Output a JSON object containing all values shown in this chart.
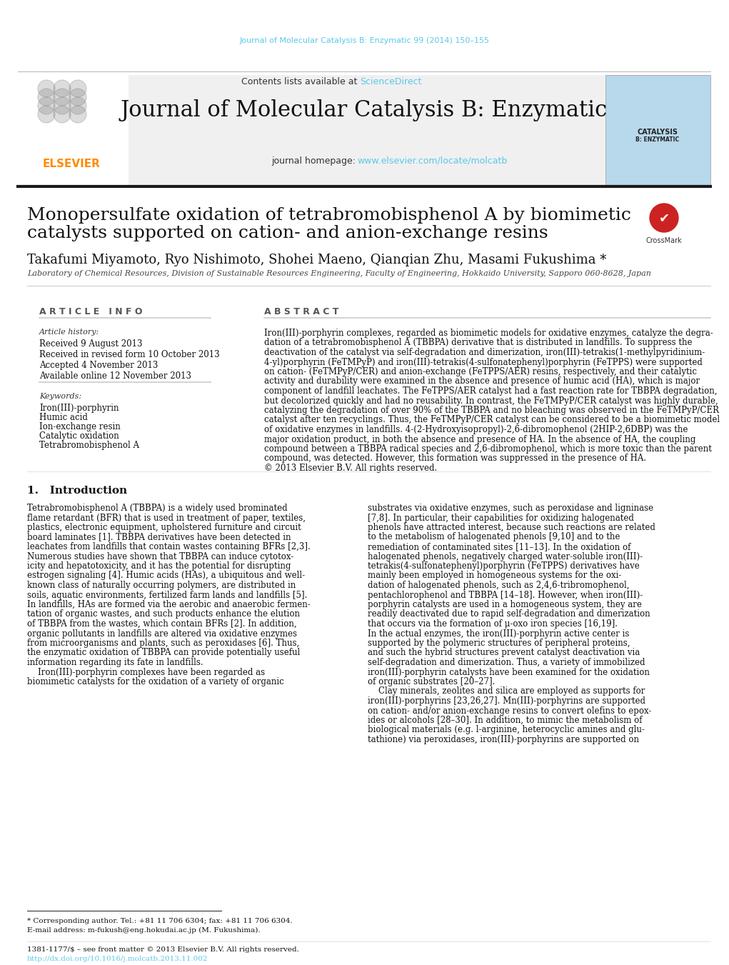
{
  "bg_color": "#ffffff",
  "top_journal_text": "Journal of Molecular Catalysis B: Enzymatic 99 (2014) 150–155",
  "top_journal_color": "#5bc8e8",
  "header_bg": "#f0f0f0",
  "contents_text": "Contents lists available at ",
  "sciencedirect_text": "ScienceDirect",
  "sciencedirect_color": "#5bc8e8",
  "journal_title": "Journal of Molecular Catalysis B: Enzymatic",
  "journal_title_fontsize": 22,
  "homepage_text": "journal homepage: ",
  "homepage_url": "www.elsevier.com/locate/molcatb",
  "homepage_url_color": "#5bc8e8",
  "elsevier_color": "#ff8c00",
  "article_title_line1": "Monopersulfate oxidation of tetrabromobisphenol A by biomimetic",
  "article_title_line2": "catalysts supported on cation- and anion-exchange resins",
  "article_title_fontsize": 18,
  "authors": "Takafumi Miyamoto, Ryo Nishimoto, Shohei Maeno, Qianqian Zhu, Masami Fukushima",
  "authors_fontsize": 13,
  "affiliation": "Laboratory of Chemical Resources, Division of Sustainable Resources Engineering, Faculty of Engineering, Hokkaido University, Sapporo 060-8628, Japan",
  "affiliation_fontsize": 8,
  "article_info_header": "A R T I C L E   I N F O",
  "article_info_fontsize": 9,
  "article_history_label": "Article history:",
  "received": "Received 9 August 2013",
  "received_revised": "Received in revised form 10 October 2013",
  "accepted": "Accepted 4 November 2013",
  "available": "Available online 12 November 2013",
  "keywords_label": "Keywords:",
  "keyword1": "Iron(III)-porphyrin",
  "keyword2": "Humic acid",
  "keyword3": "Ion-exchange resin",
  "keyword4": "Catalytic oxidation",
  "keyword5": "Tetrabromobisphenol A",
  "abstract_header": "A B S T R A C T",
  "abstract_fontsize": 8.5,
  "intro_header": "1.   Introduction",
  "intro_fontsize": 8.5,
  "footer_text1": "* Corresponding author. Tel.: +81 11 706 6304; fax: +81 11 706 6304.",
  "footer_text2": "E-mail address: m-fukush@eng.hokudai.ac.jp (M. Fukushima).",
  "footer_text3": "1381-1177/$ – see front matter © 2013 Elsevier B.V. All rights reserved.",
  "footer_url": "http://dx.doi.org/10.1016/j.molcatb.2013.11.002",
  "separator_color": "#cccccc",
  "text_color": "#000000",
  "label_color": "#555555",
  "italic_label_color": "#444444"
}
